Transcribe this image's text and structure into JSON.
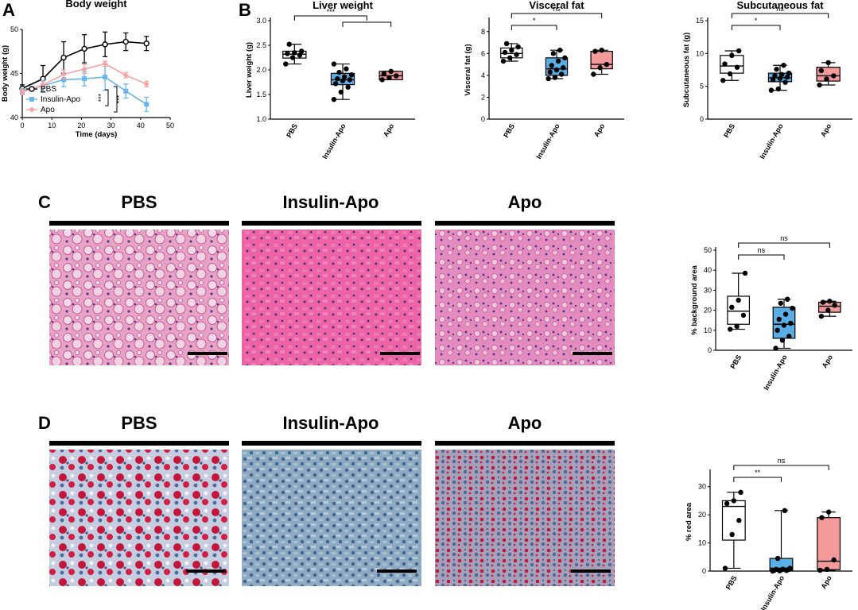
{
  "figure": {
    "panels": {
      "a": "A",
      "b": "B",
      "c": "C",
      "d": "D"
    }
  },
  "colors": {
    "pbs": "#ffffff",
    "insulin_apo": "#5aaee6",
    "apo": "#f59a9a",
    "line_pbs": "#000000",
    "line_insulin": "#67b5ea",
    "line_apo": "#f5a3a3",
    "he_stain": "#e8679c",
    "oro_blue": "#5a7fa6",
    "oro_red": "#c8193c"
  },
  "histology": {
    "c": {
      "labels": [
        "PBS",
        "Insulin-Apo",
        "Apo"
      ],
      "stain": "he"
    },
    "d": {
      "labels": [
        "PBS",
        "Insulin-Apo",
        "Apo"
      ],
      "stain": "oro"
    }
  },
  "chart_data": [
    {
      "id": "body_weight",
      "type": "line",
      "title": "Body weight",
      "xlabel": "Time (days)",
      "ylabel": "Body weight (g)",
      "xlim": [
        0,
        50
      ],
      "ylim": [
        40,
        50
      ],
      "xticks": [
        0,
        10,
        20,
        30,
        40,
        50
      ],
      "yticks": [
        40,
        45,
        50
      ],
      "legend": [
        "PBS",
        "Insulin-Apo",
        "Apo"
      ],
      "legend_position": "bottom-left",
      "significance": [
        "***",
        "***"
      ],
      "series": [
        {
          "name": "PBS",
          "x": [
            0,
            7,
            14,
            21,
            28,
            35,
            42
          ],
          "y": [
            43.3,
            44.4,
            46.8,
            47.8,
            48.3,
            48.6,
            48.4
          ],
          "err": [
            0.4,
            1.5,
            1.8,
            1.6,
            1.4,
            1.0,
            0.8
          ]
        },
        {
          "name": "Insulin-Apo",
          "x": [
            0,
            7,
            14,
            21,
            28,
            35,
            42
          ],
          "y": [
            43.0,
            43.6,
            44.3,
            44.4,
            44.6,
            43.0,
            41.5
          ],
          "err": [
            0.3,
            0.6,
            0.8,
            0.8,
            1.5,
            0.8,
            0.8
          ]
        },
        {
          "name": "Apo",
          "x": [
            0,
            7,
            14,
            21,
            28,
            35,
            42
          ],
          "y": [
            42.9,
            43.7,
            44.9,
            45.5,
            46.1,
            44.8,
            43.8
          ],
          "err": [
            0.3,
            0.4,
            0.5,
            0.5,
            0.3,
            0.3,
            0.3
          ]
        }
      ]
    },
    {
      "id": "liver_weight",
      "type": "box",
      "title": "Liver weight",
      "ylabel": "Liver weight (g)",
      "ylim": [
        1.0,
        3.0
      ],
      "yticks": [
        1.0,
        1.5,
        2.0,
        2.5,
        3.0
      ],
      "categories": [
        "PBS",
        "Insulin-Apo",
        "Apo"
      ],
      "boxes": [
        {
          "min": 2.12,
          "q1": 2.24,
          "median": 2.32,
          "q3": 2.38,
          "max": 2.52,
          "points": [
            2.12,
            2.25,
            2.3,
            2.33,
            2.35,
            2.38,
            2.52
          ]
        },
        {
          "min": 1.4,
          "q1": 1.7,
          "median": 1.8,
          "q3": 1.93,
          "max": 2.12,
          "points": [
            1.4,
            1.55,
            1.65,
            1.72,
            1.78,
            1.8,
            1.82,
            1.86,
            1.9,
            1.95,
            2.02,
            2.12
          ]
        },
        {
          "min": 1.8,
          "q1": 1.8,
          "median": 1.88,
          "q3": 1.97,
          "max": 1.97,
          "points": [
            1.8,
            1.84,
            1.88,
            1.92,
            1.97
          ]
        }
      ],
      "comparisons": [
        {
          "from": 0,
          "to": "1-2",
          "label": "***"
        }
      ]
    },
    {
      "id": "visceral_fat",
      "type": "box",
      "title": "Visceral fat",
      "ylabel": "Visceral fat (g)",
      "ylim": [
        0,
        9
      ],
      "yticks": [
        0,
        2,
        4,
        6,
        8
      ],
      "categories": [
        "PBS",
        "Insulin-Apo",
        "Apo"
      ],
      "boxes": [
        {
          "min": 5.3,
          "q1": 5.6,
          "median": 6.0,
          "q3": 6.5,
          "max": 6.9,
          "points": [
            5.3,
            5.6,
            5.9,
            6.1,
            6.3,
            6.6,
            6.9
          ]
        },
        {
          "min": 3.7,
          "q1": 4.0,
          "median": 4.6,
          "q3": 5.6,
          "max": 6.3,
          "points": [
            3.7,
            3.8,
            4.1,
            4.3,
            4.5,
            4.7,
            4.9,
            5.3,
            5.6,
            6.0,
            6.3
          ]
        },
        {
          "min": 4.1,
          "q1": 4.6,
          "median": 5.0,
          "q3": 6.2,
          "max": 6.3,
          "points": [
            4.1,
            4.7,
            5.0,
            6.2,
            6.3
          ]
        }
      ],
      "comparisons": [
        {
          "from": 0,
          "to": 1,
          "label": "*"
        },
        {
          "from": 0,
          "to": 2,
          "label": "ns"
        }
      ]
    },
    {
      "id": "subcutaneous_fat",
      "type": "box",
      "title": "Subcutaneous fat",
      "ylabel": "Subcutaneous fat (g)",
      "ylim": [
        0,
        15
      ],
      "yticks": [
        0,
        5,
        10,
        15
      ],
      "categories": [
        "PBS",
        "Insulin-Apo",
        "Apo"
      ],
      "boxes": [
        {
          "min": 5.9,
          "q1": 7.0,
          "median": 8.1,
          "q3": 9.7,
          "max": 10.4,
          "points": [
            5.9,
            6.9,
            7.9,
            8.4,
            9.7,
            10.4
          ]
        },
        {
          "min": 4.4,
          "q1": 5.7,
          "median": 6.3,
          "q3": 7.0,
          "max": 8.2,
          "points": [
            4.4,
            4.6,
            5.6,
            6.0,
            6.2,
            6.4,
            6.6,
            6.8,
            7.0,
            7.6,
            8.2
          ]
        },
        {
          "min": 5.2,
          "q1": 5.8,
          "median": 6.6,
          "q3": 7.9,
          "max": 8.6,
          "points": [
            5.2,
            6.1,
            6.6,
            7.4,
            8.6
          ]
        }
      ],
      "comparisons": [
        {
          "from": 0,
          "to": 1,
          "label": "*"
        },
        {
          "from": 0,
          "to": 2,
          "label": "ns"
        }
      ]
    },
    {
      "id": "background_area",
      "type": "box",
      "title": "",
      "ylabel": "% background area",
      "ylim": [
        0,
        50
      ],
      "yticks": [
        0,
        10,
        20,
        30,
        40,
        50
      ],
      "categories": [
        "PBS",
        "Insulin-Apo",
        "Apo"
      ],
      "boxes": [
        {
          "min": 10.5,
          "q1": 13.0,
          "median": 19.5,
          "q3": 27.0,
          "max": 38.5,
          "points": [
            10.5,
            12.0,
            17.5,
            21.5,
            25.0,
            38.5
          ]
        },
        {
          "min": 1.0,
          "q1": 6.0,
          "median": 13.0,
          "q3": 21.5,
          "max": 25.5,
          "points": [
            1.0,
            5.0,
            7.0,
            10.0,
            12.5,
            13.5,
            15.5,
            18.0,
            21.0,
            23.5,
            25.5
          ]
        },
        {
          "min": 17.0,
          "q1": 19.0,
          "median": 22.0,
          "q3": 24.0,
          "max": 24.5,
          "points": [
            17.0,
            20.0,
            22.5,
            24.0,
            24.5
          ]
        }
      ],
      "comparisons": [
        {
          "from": 0,
          "to": 1,
          "label": "ns"
        },
        {
          "from": 0,
          "to": 2,
          "label": "ns"
        }
      ]
    },
    {
      "id": "red_area",
      "type": "box",
      "title": "",
      "ylabel": "% red area",
      "ylim": [
        0,
        35
      ],
      "yticks": [
        0,
        10,
        20,
        30
      ],
      "categories": [
        "PBS",
        "Insulin-Apo",
        "Apo"
      ],
      "boxes": [
        {
          "min": 1.0,
          "q1": 11.0,
          "median": 23.0,
          "q3": 25.0,
          "max": 28.0,
          "points": [
            1.0,
            13.0,
            18.0,
            24.0,
            25.0,
            28.0
          ]
        },
        {
          "min": 0.0,
          "q1": 0.2,
          "median": 1.0,
          "q3": 4.5,
          "max": 21.5,
          "points": [
            0.0,
            0.1,
            0.2,
            0.3,
            0.4,
            0.5,
            0.6,
            0.7,
            1.0,
            4.5,
            21.5
          ]
        },
        {
          "min": 0.3,
          "q1": 0.5,
          "median": 3.5,
          "q3": 19.0,
          "max": 21.0,
          "points": [
            0.3,
            0.6,
            4.0,
            19.0,
            21.0
          ]
        }
      ],
      "comparisons": [
        {
          "from": 0,
          "to": 1,
          "label": "**"
        },
        {
          "from": 0,
          "to": 2,
          "label": "ns"
        }
      ]
    }
  ]
}
